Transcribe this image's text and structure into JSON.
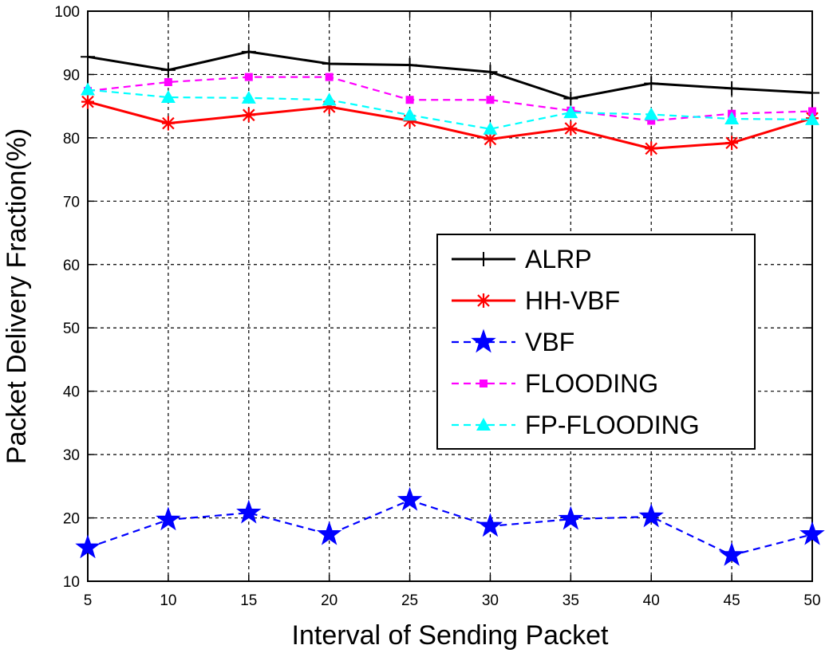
{
  "chart_data": {
    "type": "line",
    "title": "",
    "xlabel": "Interval of Sending Packet",
    "ylabel": "Packet Delivery Fraction(%)",
    "x": [
      5,
      10,
      15,
      20,
      25,
      30,
      35,
      40,
      45,
      50
    ],
    "xlim": [
      5,
      50
    ],
    "ylim": [
      10,
      100
    ],
    "xticks": [
      "5",
      "10",
      "15",
      "20",
      "25",
      "30",
      "35",
      "40",
      "45",
      "50"
    ],
    "yticks": [
      "10",
      "20",
      "30",
      "40",
      "50",
      "60",
      "70",
      "80",
      "90",
      "100"
    ],
    "grid": true,
    "legend_position": "center-right",
    "series": [
      {
        "name": "ALRP",
        "color": "#000000",
        "dash": "solid",
        "marker": "plus",
        "values": [
          92.8,
          90.7,
          93.6,
          91.7,
          91.5,
          90.4,
          86.2,
          88.6,
          87.8,
          87.1
        ]
      },
      {
        "name": "HH-VBF",
        "color": "#ff0000",
        "dash": "solid",
        "marker": "asterisk",
        "values": [
          85.7,
          82.3,
          83.6,
          84.9,
          82.7,
          79.8,
          81.5,
          78.3,
          79.2,
          83.1
        ]
      },
      {
        "name": "VBF",
        "color": "#0000ff",
        "dash": "dashed",
        "marker": "star",
        "values": [
          15.3,
          19.7,
          20.8,
          17.4,
          22.8,
          18.7,
          19.8,
          20.2,
          14.1,
          17.4
        ]
      },
      {
        "name": "FLOODING",
        "color": "#ff00ff",
        "dash": "dashed",
        "marker": "square",
        "values": [
          87.4,
          88.8,
          89.6,
          89.6,
          86.0,
          86.0,
          84.3,
          82.7,
          83.8,
          84.2
        ]
      },
      {
        "name": "FP-FLOODING",
        "color": "#00ffff",
        "dash": "dashed",
        "marker": "triangle",
        "values": [
          87.6,
          86.4,
          86.3,
          86.0,
          83.6,
          81.4,
          84.0,
          83.7,
          83.0,
          82.9
        ]
      }
    ]
  }
}
